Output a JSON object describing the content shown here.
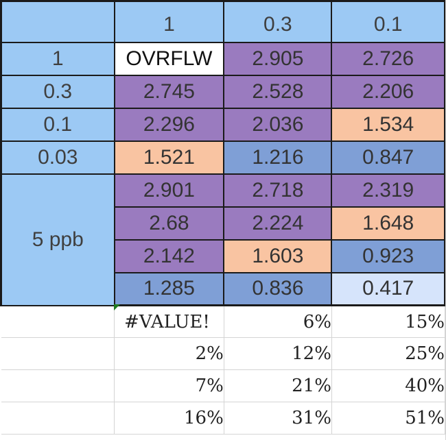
{
  "header_row": {
    "corner": "",
    "columns": [
      "1",
      "0.3",
      "0.1"
    ]
  },
  "data_rows": [
    {
      "label": "1",
      "cells": [
        "OVRFLW",
        "2.905",
        "2.726"
      ]
    },
    {
      "label": "0.3",
      "cells": [
        "2.745",
        "2.528",
        "2.206"
      ]
    },
    {
      "label": "0.1",
      "cells": [
        "2.296",
        "2.036",
        "1.534"
      ]
    },
    {
      "label": "0.03",
      "cells": [
        "1.521",
        "1.216",
        "0.847"
      ]
    }
  ],
  "group": {
    "label": "5 ppb",
    "rows": [
      [
        "2.901",
        "2.718",
        "2.319"
      ],
      [
        "2.68",
        "2.224",
        "1.648"
      ],
      [
        "2.142",
        "1.603",
        "0.923"
      ],
      [
        "1.285",
        "0.836",
        "0.417"
      ]
    ]
  },
  "percent_rows": [
    [
      "#VALUE!",
      "6%",
      "15%"
    ],
    [
      "2%",
      "12%",
      "25%"
    ],
    [
      "7%",
      "21%",
      "40%"
    ],
    [
      "16%",
      "31%",
      "51%"
    ]
  ],
  "colors": {
    "header_blue": "#9cc9f4",
    "purple": "#9a7bbf",
    "peach": "#f9c4a2",
    "blue": "#7f9fd6",
    "light_blue": "#d6e4fb",
    "white": "#ffffff",
    "error_indicator_green": "#1f7a1f"
  }
}
